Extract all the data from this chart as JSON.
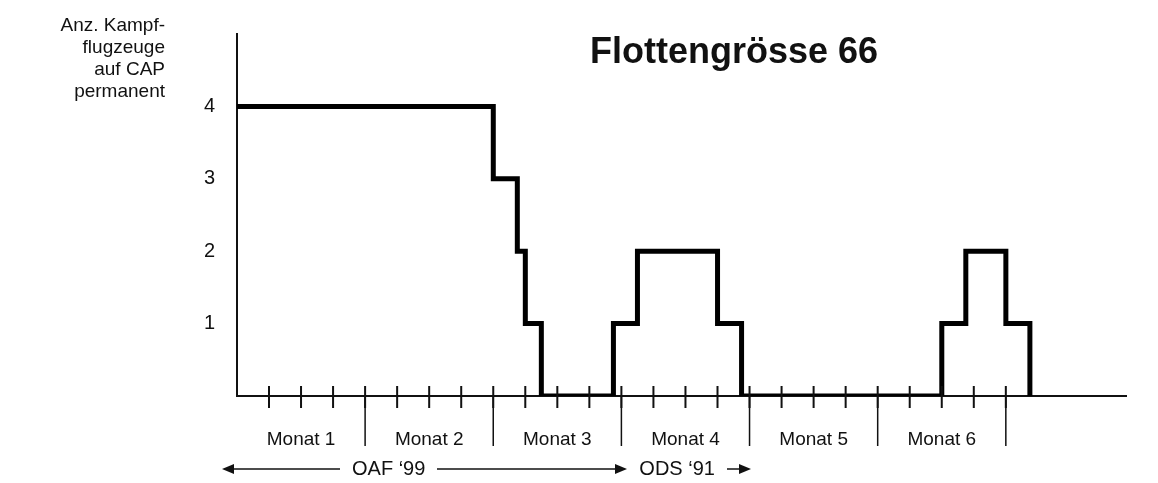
{
  "chart_data": {
    "type": "step",
    "title": "Flottengrösse 66",
    "ylabel": "Anz. Kampf-\nflugzeuge\nauf CAP\npermanent",
    "categories": [
      null,
      null,
      null,
      null,
      null,
      null,
      null,
      null,
      "Monat 1",
      null,
      null,
      null,
      null,
      null,
      null,
      null,
      null,
      null,
      null,
      null,
      null,
      null,
      null,
      null,
      "Monat 2",
      null,
      null,
      null,
      null,
      null,
      null,
      null,
      null,
      null,
      null,
      null,
      null,
      null,
      null,
      null,
      "Monat 3",
      null,
      null,
      null,
      null,
      null,
      null,
      null,
      null,
      null,
      null,
      null,
      null,
      null,
      null,
      null,
      "Monat 4",
      null,
      null,
      null,
      null,
      null,
      null,
      null,
      null,
      null,
      null,
      null,
      null,
      null,
      null,
      null,
      "Monat 5",
      null,
      null,
      null,
      null,
      null,
      null,
      null,
      null,
      null,
      null,
      null,
      null,
      null,
      null,
      null,
      "Monat 6",
      null,
      null,
      null,
      null,
      null,
      null,
      null,
      null,
      null,
      null,
      null,
      null,
      null,
      null,
      null,
      null,
      null,
      null,
      null,
      null,
      null,
      null,
      null
    ],
    "series": [
      {
        "color": "#000000",
        "values": [
          4,
          4,
          4,
          4,
          4,
          4,
          4,
          4,
          4,
          4,
          4,
          4,
          4,
          4,
          4,
          4,
          4,
          4,
          4,
          4,
          4,
          4,
          4,
          4,
          4,
          4,
          4,
          4,
          4,
          4,
          4,
          4,
          3,
          3,
          3,
          2,
          1,
          1,
          0,
          0,
          0,
          0,
          0,
          0,
          0,
          0,
          0,
          1,
          1,
          1,
          2,
          2,
          2,
          2,
          2,
          2,
          2,
          2,
          2,
          2,
          1,
          1,
          1,
          0,
          0,
          0,
          0,
          0,
          0,
          0,
          0,
          0,
          0,
          0,
          0,
          0,
          0,
          0,
          0,
          0,
          0,
          0,
          0,
          0,
          0,
          0,
          0,
          0,
          1,
          1,
          1,
          2,
          2,
          2,
          2,
          2,
          1,
          1,
          1,
          0,
          null,
          null,
          null,
          null,
          null,
          null,
          null,
          null,
          null,
          null,
          null,
          null
        ]
      }
    ],
    "ylim": [
      0,
      5
    ],
    "yticks": [
      1,
      2,
      3,
      4
    ],
    "annotations": [
      "OAF ‘99",
      "ODS ‘91"
    ]
  }
}
